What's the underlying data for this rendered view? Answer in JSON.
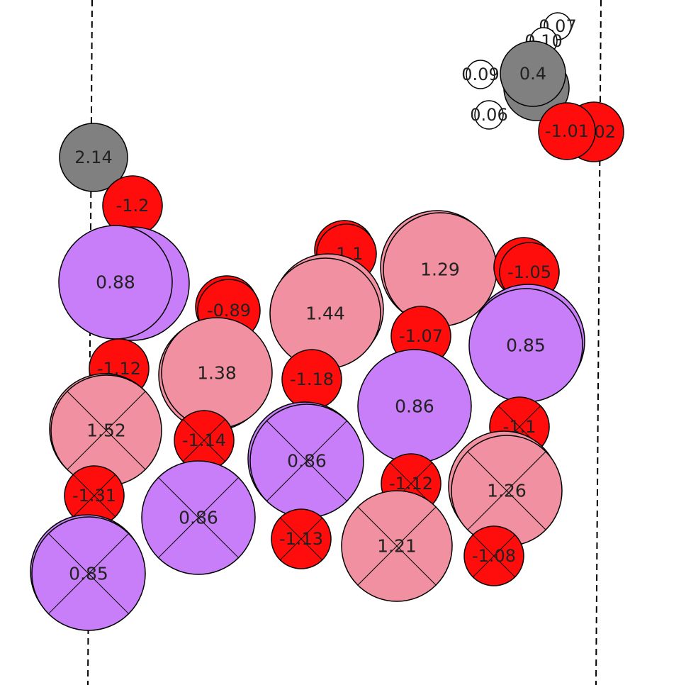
{
  "colors": {
    "background": "#ffffff",
    "oxygen": "#ff0d0d",
    "pink_metal": "#f090a0",
    "purple_metal": "#c87ef8",
    "gray_carbon": "#808080",
    "hydrogen": "#ffffff",
    "outline": "#000000",
    "boundary_line": "#000000"
  },
  "atoms": [
    {
      "label": "0.07",
      "species": "hydrogen"
    },
    {
      "label": "0.10",
      "species": "hydrogen"
    },
    {
      "label": "0.09",
      "species": "hydrogen"
    },
    {
      "label": "0.06",
      "species": "hydrogen"
    },
    {
      "label": "0.4",
      "species": "gray_carbon"
    },
    {
      "label": "-1.02",
      "species": "oxygen"
    },
    {
      "label": "-1.01",
      "species": "oxygen"
    },
    {
      "label": "2.14",
      "species": "gray_carbon"
    },
    {
      "label": "-1.2",
      "species": "oxygen"
    },
    {
      "label": "0.88",
      "species": "purple_metal"
    },
    {
      "label": "-1.1",
      "species": "oxygen"
    },
    {
      "label": "1.29",
      "species": "pink_metal"
    },
    {
      "label": "-1.05",
      "species": "oxygen"
    },
    {
      "label": "-0.89",
      "species": "oxygen"
    },
    {
      "label": "1.44",
      "species": "pink_metal"
    },
    {
      "label": "0.85",
      "species": "purple_metal"
    },
    {
      "label": "-1.07",
      "species": "oxygen"
    },
    {
      "label": "-1.12",
      "species": "oxygen"
    },
    {
      "label": "1.38",
      "species": "pink_metal"
    },
    {
      "label": "-1.18",
      "species": "oxygen"
    },
    {
      "label": "0.86",
      "species": "purple_metal"
    },
    {
      "label": "1.52",
      "species": "pink_metal"
    },
    {
      "label": "-1.14",
      "species": "oxygen"
    },
    {
      "label": "0.86",
      "species": "purple_metal"
    },
    {
      "label": "-1.1",
      "species": "oxygen"
    },
    {
      "label": "-1.12",
      "species": "oxygen"
    },
    {
      "label": "1.26",
      "species": "pink_metal"
    },
    {
      "label": "-1.31",
      "species": "oxygen"
    },
    {
      "label": "0.86",
      "species": "purple_metal"
    },
    {
      "label": "-1.13",
      "species": "oxygen"
    },
    {
      "label": "1.21",
      "species": "pink_metal"
    },
    {
      "label": "-1.08",
      "species": "oxygen"
    },
    {
      "label": "0.85",
      "species": "purple_metal"
    }
  ]
}
